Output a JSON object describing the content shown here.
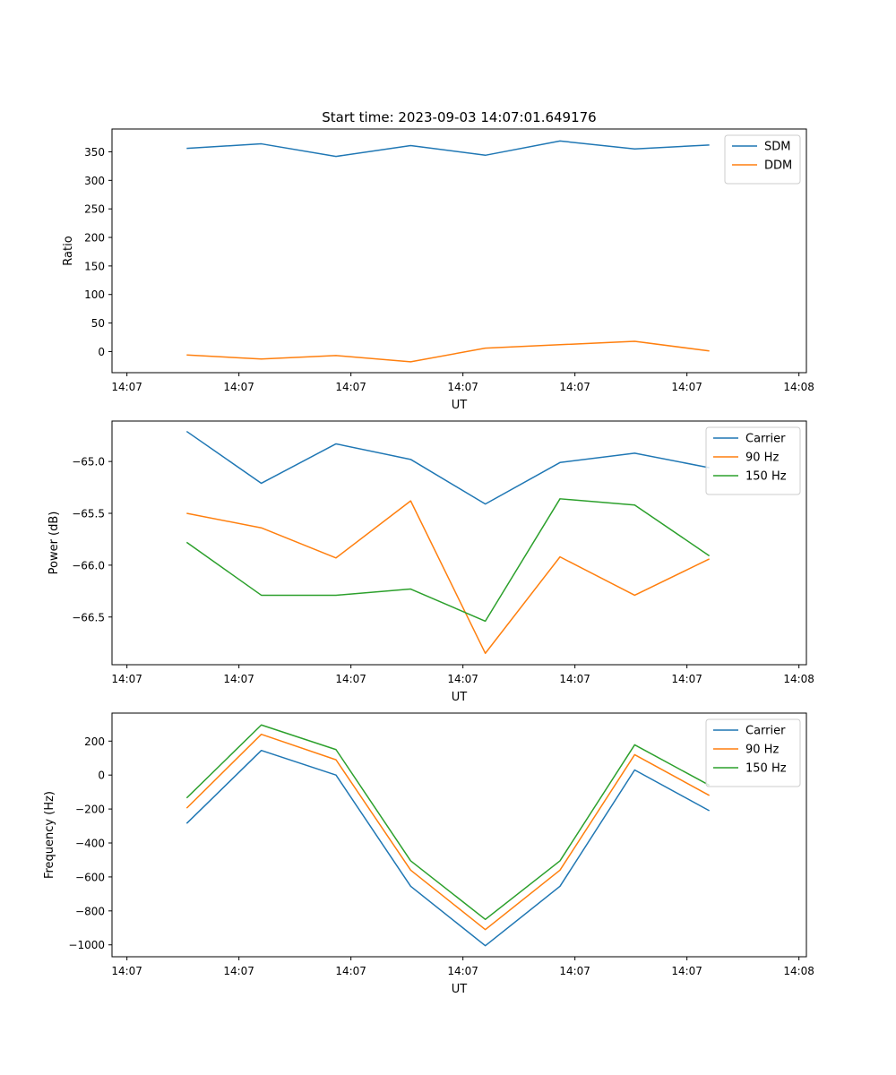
{
  "figure": {
    "title": "Start time: 2023-09-03 14:07:01.649176"
  },
  "chart_data": [
    {
      "type": "line",
      "title": "Start time: 2023-09-03 14:07:01.649176",
      "xlabel": "UT",
      "ylabel": "Ratio",
      "x": [
        1,
        2,
        3,
        4,
        5,
        6,
        7,
        8
      ],
      "xlim": [
        0,
        9.3
      ],
      "x_ticks": [
        0.2,
        1.7,
        3.2,
        4.7,
        6.2,
        7.7,
        9.2
      ],
      "x_tick_labels": [
        "14:07",
        "14:07",
        "14:07",
        "14:07",
        "14:07",
        "14:07",
        "14:08"
      ],
      "ylim": [
        -37,
        390
      ],
      "y_ticks": [
        0,
        50,
        100,
        150,
        200,
        250,
        300,
        350
      ],
      "y_tick_labels": [
        "0",
        "50",
        "100",
        "150",
        "200",
        "250",
        "300",
        "350"
      ],
      "series": [
        {
          "name": "SDM",
          "color": "#1f77b4",
          "values": [
            356,
            364,
            342,
            361,
            344,
            369,
            355,
            362
          ]
        },
        {
          "name": "DDM",
          "color": "#ff7f0e",
          "values": [
            -6,
            -13,
            -7,
            -18,
            6,
            12,
            18,
            1
          ]
        }
      ],
      "legend": "top-right"
    },
    {
      "type": "line",
      "title": "",
      "xlabel": "UT",
      "ylabel": "Power (dB)",
      "x": [
        1,
        2,
        3,
        4,
        5,
        6,
        7,
        8
      ],
      "xlim": [
        0,
        9.3
      ],
      "x_ticks": [
        0.2,
        1.7,
        3.2,
        4.7,
        6.2,
        7.7,
        9.2
      ],
      "x_tick_labels": [
        "14:07",
        "14:07",
        "14:07",
        "14:07",
        "14:07",
        "14:07",
        "14:08"
      ],
      "ylim": [
        -66.96,
        -64.61
      ],
      "y_ticks": [
        -66.5,
        -66.0,
        -65.5,
        -65.0
      ],
      "y_tick_labels": [
        "−66.5",
        "−66.0",
        "−65.5",
        "−65.0"
      ],
      "series": [
        {
          "name": "Carrier",
          "color": "#1f77b4",
          "values": [
            -64.71,
            -65.21,
            -64.83,
            -64.98,
            -65.41,
            -65.01,
            -64.92,
            -65.06
          ]
        },
        {
          "name": "90 Hz",
          "color": "#ff7f0e",
          "values": [
            -65.5,
            -65.64,
            -65.93,
            -65.38,
            -66.85,
            -65.92,
            -66.29,
            -65.94
          ]
        },
        {
          "name": "150 Hz",
          "color": "#2ca02c",
          "values": [
            -65.78,
            -66.29,
            -66.29,
            -66.23,
            -66.54,
            -65.36,
            -65.42,
            -65.91
          ]
        }
      ],
      "legend": "top-right"
    },
    {
      "type": "line",
      "title": "",
      "xlabel": "UT",
      "ylabel": "Frequency (Hz)",
      "x": [
        1,
        2,
        3,
        4,
        5,
        6,
        7,
        8
      ],
      "xlim": [
        0,
        9.3
      ],
      "x_ticks": [
        0.2,
        1.7,
        3.2,
        4.7,
        6.2,
        7.7,
        9.2
      ],
      "x_tick_labels": [
        "14:07",
        "14:07",
        "14:07",
        "14:07",
        "14:07",
        "14:07",
        "14:08"
      ],
      "ylim": [
        -1070,
        365
      ],
      "y_ticks": [
        -1000,
        -800,
        -600,
        -400,
        -200,
        0,
        200
      ],
      "y_tick_labels": [
        "−1000",
        "−800",
        "−600",
        "−400",
        "−200",
        "0",
        "200"
      ],
      "series": [
        {
          "name": "Carrier",
          "color": "#1f77b4",
          "values": [
            -285,
            145,
            0,
            -655,
            -1005,
            -655,
            30,
            -210
          ]
        },
        {
          "name": "90 Hz",
          "color": "#ff7f0e",
          "values": [
            -195,
            240,
            90,
            -560,
            -910,
            -560,
            120,
            -120
          ]
        },
        {
          "name": "150 Hz",
          "color": "#2ca02c",
          "values": [
            -135,
            295,
            150,
            -505,
            -850,
            -505,
            178,
            -60
          ]
        }
      ],
      "legend": "top-right"
    }
  ]
}
